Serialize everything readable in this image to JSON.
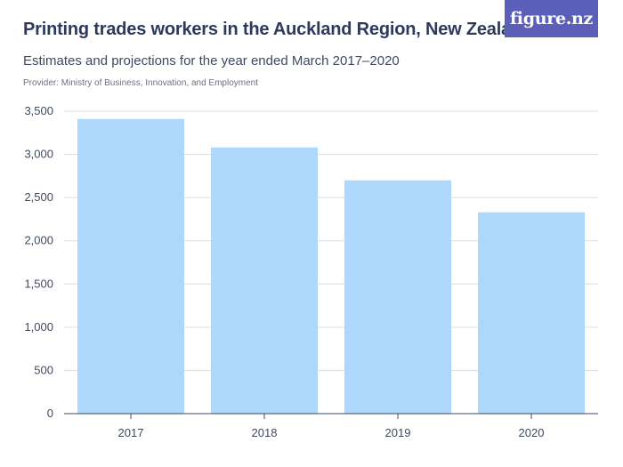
{
  "header": {
    "title": "Printing trades workers in the Auckland Region, New Zealand",
    "subtitle": "Estimates and projections for the year ended March 2017–2020",
    "provider": "Provider: Ministry of Business, Innovation, and Employment",
    "logo_text": "figure.nz"
  },
  "colors": {
    "bar": "#aed8fb",
    "grid": "#d9dde3",
    "axis": "#3f4a5e",
    "logo_bg": "#5b5fb8"
  },
  "chart_data": {
    "type": "bar",
    "title": "Printing trades workers in the Auckland Region, New Zealand",
    "subtitle": "Estimates and projections for the year ended March 2017–2020",
    "categories": [
      "2017",
      "2018",
      "2019",
      "2020"
    ],
    "values": [
      3410,
      3080,
      2700,
      2330
    ],
    "ylim": [
      0,
      3500
    ],
    "yticks": [
      0,
      500,
      1000,
      1500,
      2000,
      2500,
      3000,
      3500
    ],
    "ytick_labels": [
      "0",
      "500",
      "1,000",
      "1,500",
      "2,000",
      "2,500",
      "3,000",
      "3,500"
    ],
    "xlabel": "",
    "ylabel": "",
    "grid": true
  }
}
